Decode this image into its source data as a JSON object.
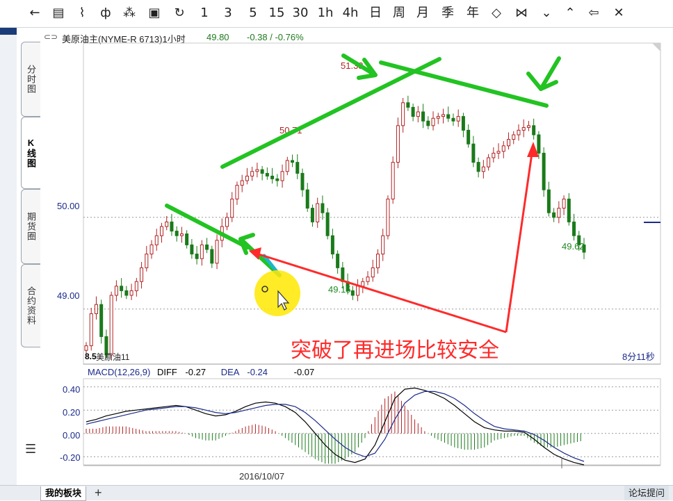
{
  "toolbar": {
    "buttons": [
      {
        "name": "back-icon",
        "label": "←"
      },
      {
        "name": "list-view-icon",
        "label": "▤"
      },
      {
        "name": "line-chart-icon",
        "label": "⌇"
      },
      {
        "name": "candlestick-icon",
        "label": "ф"
      },
      {
        "name": "draw-tool-icon",
        "label": "⁂"
      },
      {
        "name": "save-icon",
        "label": "▣"
      },
      {
        "name": "refresh-icon",
        "label": "↻"
      },
      {
        "name": "period-1",
        "label": "1"
      },
      {
        "name": "period-3",
        "label": "3"
      },
      {
        "name": "period-5",
        "label": "5"
      },
      {
        "name": "period-15",
        "label": "15"
      },
      {
        "name": "period-30",
        "label": "30"
      },
      {
        "name": "period-1h",
        "label": "1h"
      },
      {
        "name": "period-4h",
        "label": "4h"
      },
      {
        "name": "period-day",
        "label": "日"
      },
      {
        "name": "period-week",
        "label": "周"
      },
      {
        "name": "period-month",
        "label": "月"
      },
      {
        "name": "period-season",
        "label": "季"
      },
      {
        "name": "period-year",
        "label": "年"
      },
      {
        "name": "expand-icon",
        "label": "◇"
      },
      {
        "name": "shrink-icon",
        "label": "⋈"
      },
      {
        "name": "scroll-down-icon",
        "label": "⌄"
      },
      {
        "name": "scroll-up-icon",
        "label": "⌃"
      },
      {
        "name": "left-arrow-icon",
        "label": "⇦"
      },
      {
        "name": "close-icon",
        "label": "✕"
      }
    ]
  },
  "side_tabs": [
    {
      "label": "分时图",
      "active": false
    },
    {
      "label": "K线图",
      "active": true
    },
    {
      "label": "期货圈",
      "active": false
    },
    {
      "label": "合约资料",
      "active": false
    }
  ],
  "header": {
    "symbol": "美原油主(NYME-R 6713)1小时",
    "price": "49.80",
    "change": "-0.38 / -0.76%"
  },
  "chart_data": [
    {
      "type": "candlestick",
      "title": "美原油主(NYME-R 6713)1小时",
      "y_ticks": [
        "50.00",
        "49.00"
      ],
      "ylim": [
        48.4,
        51.9
      ],
      "grid": "horizontal-dotted",
      "annotations": {
        "high_label": "51.33",
        "mid_high_label": "50.71",
        "low_label": "49.15",
        "last_label": "49.62",
        "left_low_label": "8.5",
        "series_label": "美原油11",
        "countdown": "8分11秒",
        "overlay_text": "突破了再进场比较安全"
      },
      "close_path": [
        48.6,
        48.95,
        49.05,
        48.7,
        48.5,
        49.15,
        49.25,
        49.2,
        49.15,
        49.2,
        49.3,
        49.45,
        49.6,
        49.7,
        49.8,
        49.9,
        49.95,
        49.85,
        49.8,
        49.82,
        49.7,
        49.6,
        49.55,
        49.7,
        49.65,
        49.5,
        49.75,
        49.9,
        50.0,
        50.2,
        50.35,
        50.4,
        50.45,
        50.5,
        50.52,
        50.48,
        50.45,
        50.42,
        50.4,
        50.5,
        50.62,
        50.6,
        50.48,
        50.3,
        50.1,
        49.95,
        50.15,
        50.05,
        49.8,
        49.6,
        49.45,
        49.3,
        49.2,
        49.15,
        49.25,
        49.3,
        49.35,
        49.45,
        49.6,
        49.8,
        50.2,
        50.6,
        51.0,
        51.25,
        51.2,
        51.1,
        51.15,
        51.05,
        51.0,
        51.08,
        51.1,
        51.12,
        51.08,
        51.05,
        51.1,
        50.95,
        50.8,
        50.6,
        50.5,
        50.55,
        50.65,
        50.7,
        50.72,
        50.78,
        50.85,
        50.9,
        50.95,
        50.98,
        51.0,
        50.9,
        50.7,
        50.3,
        50.05,
        50.0,
        50.1,
        50.2,
        49.95,
        49.8,
        49.7,
        49.62
      ]
    },
    {
      "type": "line",
      "title": "MACD(12,26,9)",
      "legend": [
        {
          "name": "DIFF",
          "value": "-0.27"
        },
        {
          "name": "DEA",
          "value": "-0.24"
        },
        {
          "name": "",
          "value": "-0.07"
        }
      ],
      "y_ticks": [
        "0.40",
        "0.20",
        "0.00",
        "-0.20"
      ],
      "ylim": [
        -0.27,
        0.47
      ],
      "x_label": "2016/10/07",
      "diff": [
        0.1,
        0.12,
        0.15,
        0.17,
        0.19,
        0.2,
        0.21,
        0.22,
        0.23,
        0.24,
        0.23,
        0.2,
        0.17,
        0.15,
        0.16,
        0.19,
        0.23,
        0.26,
        0.27,
        0.26,
        0.23,
        0.18,
        0.1,
        0.0,
        -0.1,
        -0.18,
        -0.23,
        -0.25,
        -0.22,
        -0.1,
        0.1,
        0.3,
        0.38,
        0.39,
        0.37,
        0.34,
        0.3,
        0.24,
        0.17,
        0.1,
        0.05,
        0.03,
        0.02,
        0.02,
        0.01,
        -0.05,
        -0.12,
        -0.18,
        -0.22,
        -0.25,
        -0.27
      ],
      "dea": [
        0.08,
        0.1,
        0.12,
        0.14,
        0.16,
        0.18,
        0.2,
        0.21,
        0.22,
        0.23,
        0.23,
        0.22,
        0.2,
        0.18,
        0.17,
        0.18,
        0.2,
        0.22,
        0.24,
        0.25,
        0.25,
        0.23,
        0.18,
        0.11,
        0.03,
        -0.05,
        -0.12,
        -0.17,
        -0.2,
        -0.17,
        -0.05,
        0.12,
        0.26,
        0.33,
        0.36,
        0.36,
        0.34,
        0.3,
        0.24,
        0.17,
        0.11,
        0.06,
        0.04,
        0.03,
        0.02,
        -0.01,
        -0.06,
        -0.12,
        -0.17,
        -0.21,
        -0.24
      ]
    }
  ],
  "bottom": {
    "tab_label": "我的板块",
    "add_label": "+",
    "forum_label": "论坛提问"
  },
  "colors": {
    "up": "#b22222",
    "down": "#1a7a1a",
    "annotation_green": "#22c322",
    "annotation_red": "#ff2a2a",
    "highlight_yellow": "#ffe800",
    "price_label_green": "#1f8a1f",
    "header_green": "#1f7a1f"
  }
}
